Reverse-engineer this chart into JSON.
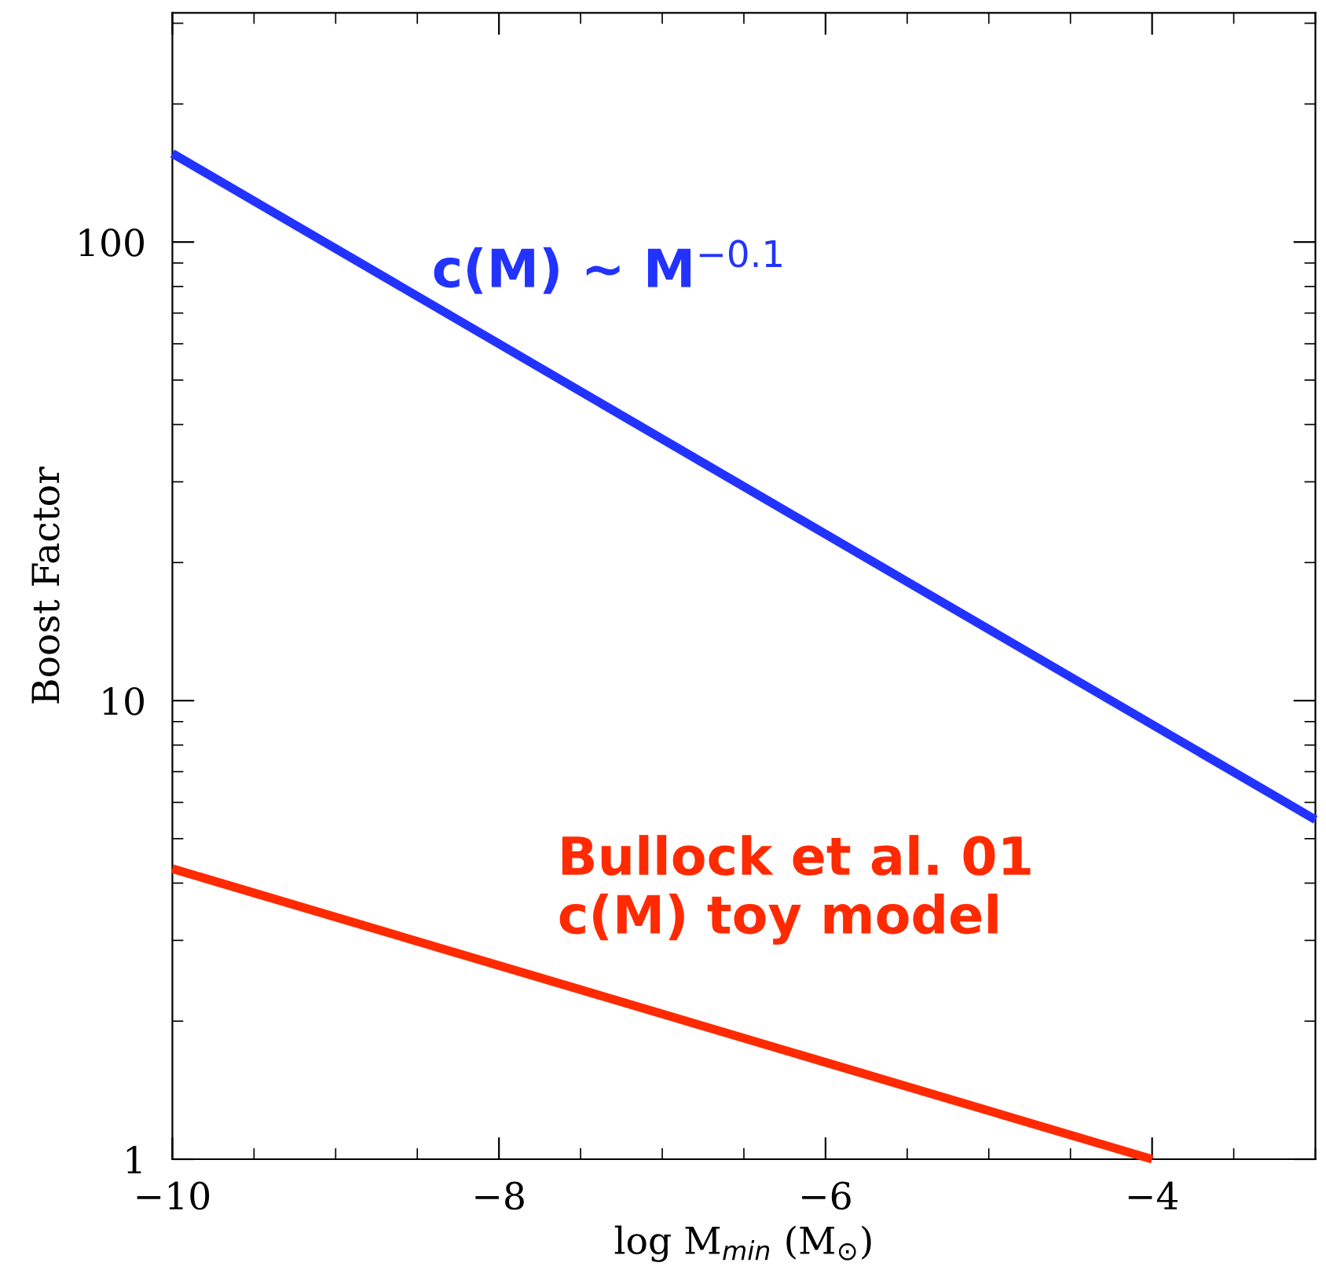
{
  "chart_data": {
    "type": "line",
    "xlabel": "log M$_{min}$ (M$_{⊙}$)",
    "ylabel": "Boost Factor",
    "log": "y",
    "xlim": [
      -10,
      -3
    ],
    "xticks": [
      {
        "value": -10,
        "label": "−10"
      },
      {
        "value": -8,
        "label": "−8"
      },
      {
        "value": -6,
        "label": "−6"
      },
      {
        "value": -4,
        "label": "−4"
      }
    ],
    "ylim": [
      1,
      316
    ],
    "yticks": [
      1,
      10,
      100
    ],
    "grid": false,
    "legend": false,
    "marker": "none",
    "line_style": "solid",
    "series": [
      {
        "name": "c(M) ~ M$^{−0.1}$",
        "color": "#2233ff",
        "x": [
          -10,
          -3
        ],
        "values": [
          156,
          5.5
        ]
      },
      {
        "name": "Bullock et al. 01\nc(M) toy model",
        "color": "#ff2a00",
        "x": [
          -10,
          -4
        ],
        "values": [
          4.3,
          1
        ]
      }
    ]
  }
}
